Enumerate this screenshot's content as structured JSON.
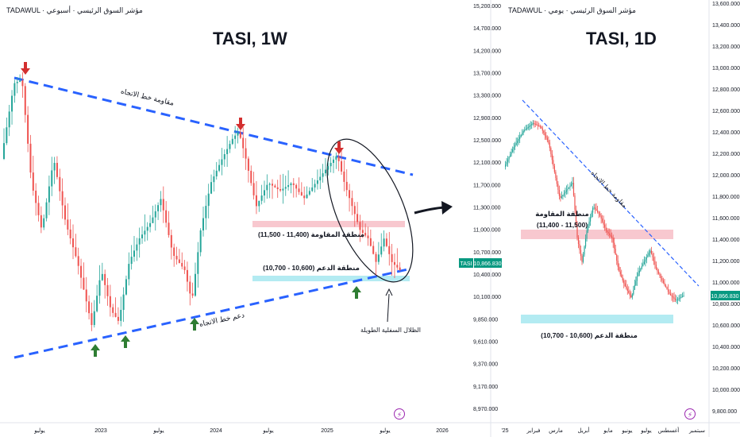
{
  "left_chart": {
    "header": "TADAWUL · مؤشر السوق الرئيسي · أسبوعي",
    "title": "TASI, 1W",
    "annotations": {
      "resistance_line": "مقاومة خط الاتجاه",
      "support_line": "دعم خط الاتجاه",
      "resistance_zone": "منطقة المقاومة (11,400 - 11,500)",
      "support_zone": "منطقة الدعم (10,600 - 10,700)",
      "long_shadows": "الظلال السفلية الطويلة"
    },
    "badge": "⚡"
  },
  "right_chart": {
    "header": "TADAWUL · مؤشر السوق الرئيسي · يومي",
    "title": "TASI, 1D",
    "annotations": {
      "resistance_line": "مقاومة خط الاتجاه",
      "resistance_zone_title": "منطقة المقاومة",
      "resistance_zone_range": "(11,400 - 11,500)",
      "support_zone": "منطقة الدعم (10,600 - 10,700)"
    },
    "price_tag": "10,866.830",
    "badge": "⚡"
  },
  "mid_axis": {
    "symbol_tag": "TASI",
    "price_tag": "10,866.830"
  },
  "colors": {
    "up": "#26a69a",
    "down": "#ef5350",
    "trendline": "#2962ff",
    "resistance_zone": "#f8c8cf",
    "support_zone": "#b3ebf2",
    "arrow_down": "#d32f2f",
    "arrow_up": "#2e7d32"
  },
  "chart_data": [
    {
      "type": "candlestick",
      "title": "TASI, 1W",
      "y_ticks": [
        "15,200.000",
        "14,700.000",
        "14,200.000",
        "13,700.000",
        "13,300.000",
        "12,900.000",
        "12,500.000",
        "12,100.000",
        "11,700.000",
        "11,300.000",
        "11,000.000",
        "10,700.000",
        "10,400.000",
        "10,100.000",
        "9,850.000",
        "9,610.000",
        "9,370.000",
        "9,170.000",
        "8,970.000"
      ],
      "x_ticks": [
        "يوليو",
        "2023",
        "يوليو",
        "2024",
        "يوليو",
        "2025",
        "يوليو",
        "2026"
      ],
      "resistance_zone": [
        11400,
        11500
      ],
      "support_zone": [
        10600,
        10700
      ],
      "last_price": 10866.83
    },
    {
      "type": "candlestick",
      "title": "TASI, 1D",
      "y_ticks": [
        "13,600.000",
        "13,400.000",
        "13,200.000",
        "13,000.000",
        "12,800.000",
        "12,600.000",
        "12,400.000",
        "12,200.000",
        "12,000.000",
        "11,800.000",
        "11,600.000",
        "11,400.000",
        "11,200.000",
        "11,000.000",
        "10,800.000",
        "10,600.000",
        "10,400.000",
        "10,200.000",
        "10,000.000",
        "9,800.000"
      ],
      "x_ticks": [
        "'25",
        "فبراير",
        "مارس",
        "أبريل",
        "مايو",
        "يونيو",
        "يوليو",
        "أغسطس",
        "سبتمبر"
      ],
      "resistance_zone": [
        11400,
        11500
      ],
      "support_zone": [
        10600,
        10700
      ],
      "last_price": 10866.83
    }
  ]
}
